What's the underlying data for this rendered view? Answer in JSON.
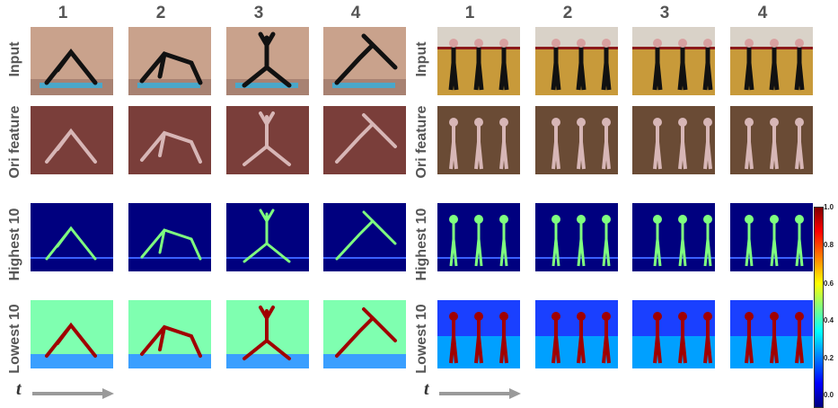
{
  "columns_left": [
    "1",
    "2",
    "3",
    "4"
  ],
  "columns_right": [
    "1",
    "2",
    "3",
    "4"
  ],
  "rows": [
    "Input",
    "Ori feature",
    "Highest 10",
    "Lowest 10"
  ],
  "time_axis": "t",
  "colorbar": {
    "ticks": [
      "1.0",
      "0.8",
      "0.6",
      "0.4",
      "0.2",
      "0.0"
    ]
  },
  "colors": {
    "yoga_wall": "#c9a28c",
    "yoga_mat": "#4aa7c9",
    "gym_floor": "#c89a3a",
    "ori_feature": "#7a3e3a",
    "jet_low": "#00007f",
    "jet_mid": "#33cc66",
    "jet_high": "#7f0000"
  }
}
